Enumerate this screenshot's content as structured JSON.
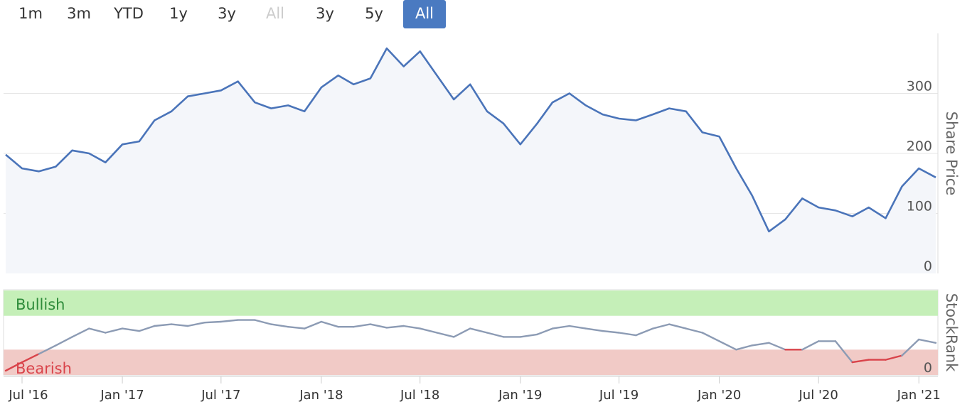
{
  "range_selector": {
    "buttons": [
      {
        "label": "1m",
        "state": "normal"
      },
      {
        "label": "3m",
        "state": "normal"
      },
      {
        "label": "YTD",
        "state": "normal"
      },
      {
        "label": "1y",
        "state": "normal"
      },
      {
        "label": "3y",
        "state": "normal"
      },
      {
        "label": "All",
        "state": "disabled"
      },
      {
        "label": "3y",
        "state": "normal"
      },
      {
        "label": "5y",
        "state": "normal"
      },
      {
        "label": "All",
        "state": "active"
      }
    ]
  },
  "colors": {
    "price_line": "#4a74b9",
    "price_fill": "#f4f6fa",
    "rank_line": "#8c9bb4",
    "rank_low_line": "#d9434a",
    "bullish_band": "#c5efb8",
    "bearish_band": "#f1cac6",
    "bullish_text": "#2e8b3a",
    "bearish_text": "#d9434a",
    "active_button": "#4a7ac1"
  },
  "chart_data": [
    {
      "type": "line",
      "title": "",
      "ylabel": "Share Price",
      "ylim": [
        0,
        400
      ],
      "yticks": [
        "0",
        "100",
        "200",
        "300"
      ],
      "x_tick_labels": [
        "Jul '16",
        "Jan '17",
        "Jul '17",
        "Jan '18",
        "Jul '18",
        "Jan '19",
        "Jul '19",
        "Jan '20",
        "Jul '20",
        "Jan '21"
      ],
      "series": [
        {
          "x": [
            "2016-06",
            "2016-07",
            "2016-08",
            "2016-09",
            "2016-10",
            "2016-11",
            "2016-12",
            "2017-01",
            "2017-02",
            "2017-03",
            "2017-04",
            "2017-05",
            "2017-06",
            "2017-07",
            "2017-08",
            "2017-09",
            "2017-10",
            "2017-11",
            "2017-12",
            "2018-01",
            "2018-02",
            "2018-03",
            "2018-04",
            "2018-05",
            "2018-06",
            "2018-07",
            "2018-08",
            "2018-09",
            "2018-10",
            "2018-11",
            "2018-12",
            "2019-01",
            "2019-02",
            "2019-03",
            "2019-04",
            "2019-05",
            "2019-06",
            "2019-07",
            "2019-08",
            "2019-09",
            "2019-10",
            "2019-11",
            "2019-12",
            "2020-01",
            "2020-02",
            "2020-03",
            "2020-04",
            "2020-05",
            "2020-06",
            "2020-07",
            "2020-08",
            "2020-09",
            "2020-10",
            "2020-11",
            "2020-12",
            "2021-01",
            "2021-02"
          ],
          "values": [
            198,
            175,
            170,
            178,
            205,
            200,
            185,
            215,
            220,
            255,
            270,
            295,
            300,
            305,
            320,
            285,
            275,
            280,
            270,
            310,
            330,
            315,
            325,
            375,
            345,
            370,
            330,
            290,
            315,
            270,
            250,
            215,
            250,
            285,
            300,
            280,
            265,
            258,
            255,
            265,
            275,
            270,
            235,
            228,
            175,
            130,
            70,
            90,
            125,
            110,
            105,
            95,
            110,
            92,
            145,
            175,
            160
          ]
        }
      ]
    },
    {
      "type": "line",
      "title": "",
      "ylabel": "StockRank",
      "ylim": [
        0,
        100
      ],
      "yticks": [
        "0"
      ],
      "bands": [
        {
          "label": "Bullish",
          "from": 70,
          "to": 100
        },
        {
          "label": "Bearish",
          "from": 0,
          "to": 30
        }
      ],
      "x_tick_labels": [
        "Jul '16",
        "Jan '17",
        "Jul '17",
        "Jan '18",
        "Jul '18",
        "Jan '19",
        "Jul '19",
        "Jan '20",
        "Jul '20",
        "Jan '21"
      ],
      "series": [
        {
          "x": [
            "2016-06",
            "2016-07",
            "2016-08",
            "2016-09",
            "2016-10",
            "2016-11",
            "2016-12",
            "2017-01",
            "2017-02",
            "2017-03",
            "2017-04",
            "2017-05",
            "2017-06",
            "2017-07",
            "2017-08",
            "2017-09",
            "2017-10",
            "2017-11",
            "2017-12",
            "2018-01",
            "2018-02",
            "2018-03",
            "2018-04",
            "2018-05",
            "2018-06",
            "2018-07",
            "2018-08",
            "2018-09",
            "2018-10",
            "2018-11",
            "2018-12",
            "2019-01",
            "2019-02",
            "2019-03",
            "2019-04",
            "2019-05",
            "2019-06",
            "2019-07",
            "2019-08",
            "2019-09",
            "2019-10",
            "2019-11",
            "2019-12",
            "2020-01",
            "2020-02",
            "2020-03",
            "2020-04",
            "2020-05",
            "2020-06",
            "2020-07",
            "2020-08",
            "2020-09",
            "2020-10",
            "2020-11",
            "2020-12",
            "2021-01",
            "2021-02"
          ],
          "values": [
            5,
            15,
            25,
            35,
            45,
            55,
            50,
            55,
            52,
            58,
            60,
            58,
            62,
            63,
            65,
            65,
            60,
            57,
            55,
            63,
            57,
            57,
            60,
            56,
            58,
            55,
            50,
            45,
            55,
            50,
            45,
            45,
            48,
            55,
            58,
            55,
            52,
            50,
            47,
            55,
            60,
            55,
            50,
            40,
            30,
            35,
            38,
            30,
            30,
            40,
            40,
            15,
            18,
            18,
            23,
            42,
            38
          ]
        }
      ]
    }
  ]
}
